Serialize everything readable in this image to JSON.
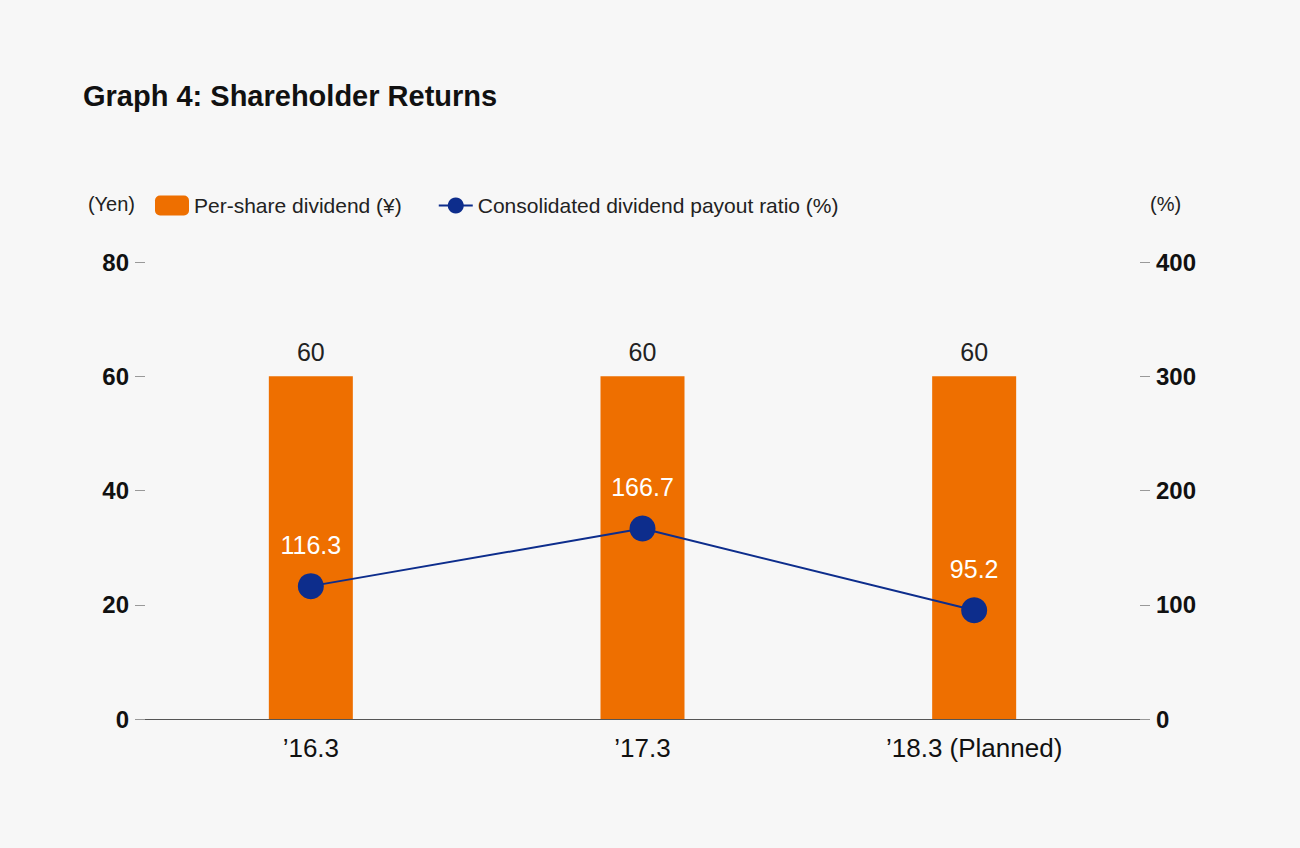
{
  "chart_data": {
    "type": "bar",
    "title": "Graph 4: Shareholder Returns",
    "categories": [
      "’16.3",
      "’17.3",
      "’18.3 (Planned)"
    ],
    "series": [
      {
        "name": "Per-share dividend (¥)",
        "type": "bar",
        "color": "#ee6f00",
        "values": [
          60,
          60,
          60
        ]
      },
      {
        "name": "Consolidated dividend payout ratio (%)",
        "type": "line",
        "color": "#0d2d8c",
        "marker": "circle",
        "axis": "y2",
        "values": [
          116.3,
          166.7,
          95.2
        ]
      }
    ],
    "y_label": "(Yen)",
    "y2_label": "(%)",
    "ylim": [
      0,
      80
    ],
    "yticks": [
      0,
      20,
      40,
      60,
      80
    ],
    "y2lim": [
      0,
      400
    ],
    "y2ticks": [
      0,
      100,
      200,
      300,
      400
    ],
    "grid": false,
    "data_labels": true,
    "legend": "top left"
  }
}
